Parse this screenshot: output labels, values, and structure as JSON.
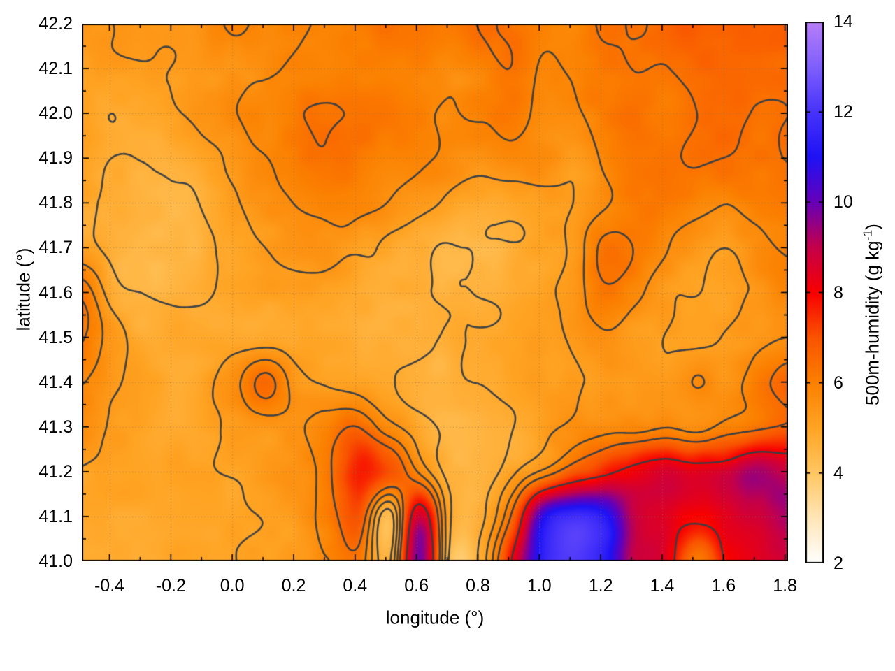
{
  "axes": {
    "xlabel": "longitude (°)",
    "ylabel": "latitude (°)"
  },
  "colorbar": {
    "label_pre": "500m-humidity (g kg",
    "label_sup": "-1",
    "label_post": ")",
    "min": 2,
    "max": 14,
    "tick_values": [
      2,
      4,
      6,
      8,
      10,
      12,
      14
    ],
    "tick_labels": [
      "2",
      "4",
      "6",
      "8",
      "10",
      "12",
      "14"
    ]
  },
  "chart_data": {
    "type": "heatmap",
    "title": "",
    "xlabel": "longitude (°)",
    "ylabel": "latitude (°)",
    "colorbar_label": "500m-humidity (g kg^-1)",
    "xlim": [
      -0.49,
      1.81
    ],
    "ylim": [
      41.0,
      42.2
    ],
    "zlim": [
      2,
      14
    ],
    "xticks": [
      -0.4,
      -0.2,
      0.0,
      0.2,
      0.4,
      0.6,
      0.8,
      1.0,
      1.2,
      1.4,
      1.6,
      1.8
    ],
    "xtick_labels": [
      "-0.4",
      "-0.2",
      "0.0",
      "0.2",
      "0.4",
      "0.6",
      "0.8",
      "1.0",
      "1.2",
      "1.4",
      "1.6",
      "1.8"
    ],
    "yticks": [
      41.0,
      41.1,
      41.2,
      41.3,
      41.4,
      41.5,
      41.6,
      41.7,
      41.8,
      41.9,
      42.0,
      42.1,
      42.2
    ],
    "ytick_labels": [
      "41.0",
      "41.1",
      "41.2",
      "41.3",
      "41.4",
      "41.5",
      "41.6",
      "41.7",
      "41.8",
      "41.9",
      "42.0",
      "42.1",
      "42.2"
    ],
    "x_minor_step": 0.1,
    "y_minor_step": 0.05,
    "grid": true,
    "grid_color": "rgba(140,115,85,0.8)",
    "palette": [
      [
        2,
        "#ffffff"
      ],
      [
        3,
        "#ffe6b8"
      ],
      [
        4,
        "#ffc762"
      ],
      [
        5,
        "#ffa424"
      ],
      [
        6,
        "#fb8000"
      ],
      [
        7,
        "#f95400"
      ],
      [
        8,
        "#f80000"
      ],
      [
        9,
        "#c4004a"
      ],
      [
        10,
        "#6600b8"
      ],
      [
        11,
        "#1e12f5"
      ],
      [
        12,
        "#4733fa"
      ],
      [
        13,
        "#7f5ffb"
      ],
      [
        14,
        "#b77ef8"
      ]
    ],
    "contour_levels": [
      4.65,
      5.2,
      5.8,
      6.4,
      8.0
    ],
    "contour_color": "rgba(55,62,70,0.95)",
    "grid_lon": [
      -0.49,
      -0.39,
      -0.29,
      -0.19,
      -0.09,
      0.01,
      0.11,
      0.21,
      0.31,
      0.41,
      0.51,
      0.61,
      0.71,
      0.81,
      0.91,
      1.01,
      1.11,
      1.21,
      1.31,
      1.41,
      1.51,
      1.61,
      1.71,
      1.81
    ],
    "grid_lat": [
      42.2,
      42.1,
      42.0,
      41.9,
      41.8,
      41.7,
      41.6,
      41.5,
      41.4,
      41.3,
      41.2,
      41.1,
      41.0
    ],
    "values": [
      [
        5.3,
        5.4,
        5.5,
        5.5,
        5.6,
        5.8,
        5.7,
        5.8,
        6.0,
        6.2,
        6.3,
        6.2,
        6.0,
        6.3,
        6.2,
        5.9,
        6.0,
        6.4,
        6.3,
        6.6,
        6.7,
        6.6,
        6.8,
        7.0
      ],
      [
        5.1,
        5.2,
        5.3,
        5.4,
        5.5,
        5.6,
        5.6,
        5.9,
        6.1,
        6.1,
        6.0,
        6.1,
        5.8,
        6.0,
        6.3,
        5.7,
        5.9,
        6.2,
        6.4,
        6.4,
        6.7,
        6.8,
        6.7,
        6.6
      ],
      [
        4.9,
        4.8,
        5.0,
        5.2,
        5.5,
        5.8,
        6.0,
        6.2,
        6.3,
        6.3,
        6.2,
        5.9,
        5.6,
        5.8,
        6.0,
        5.6,
        5.8,
        6.1,
        6.2,
        6.0,
        6.4,
        6.6,
        6.4,
        6.6
      ],
      [
        5.0,
        4.7,
        4.6,
        4.7,
        5.0,
        5.4,
        5.8,
        6.1,
        6.3,
        6.2,
        6.0,
        5.8,
        5.6,
        5.4,
        5.6,
        5.5,
        5.3,
        5.8,
        6.1,
        6.3,
        6.5,
        6.3,
        6.2,
        6.4
      ],
      [
        4.9,
        4.6,
        4.5,
        4.5,
        4.8,
        5.2,
        5.5,
        5.8,
        6.0,
        5.9,
        5.6,
        5.3,
        5.0,
        4.8,
        4.8,
        5.0,
        5.2,
        5.6,
        6.0,
        6.2,
        6.0,
        5.8,
        6.0,
        6.2
      ],
      [
        5.0,
        4.6,
        4.4,
        4.4,
        4.6,
        4.9,
        5.2,
        5.4,
        5.5,
        5.2,
        4.9,
        4.7,
        4.5,
        4.5,
        4.6,
        4.8,
        5.3,
        6.4,
        6.2,
        5.8,
        5.4,
        5.2,
        5.6,
        5.9
      ],
      [
        6.3,
        4.9,
        4.6,
        4.5,
        4.6,
        4.8,
        5.0,
        5.1,
        5.0,
        4.9,
        4.8,
        4.7,
        4.6,
        4.6,
        4.7,
        4.9,
        5.4,
        6.2,
        5.9,
        5.3,
        5.1,
        5.0,
        5.3,
        5.6
      ],
      [
        6.3,
        5.4,
        4.8,
        4.7,
        4.8,
        4.9,
        5.0,
        5.0,
        4.9,
        4.8,
        4.8,
        4.7,
        4.7,
        4.8,
        4.9,
        5.0,
        5.2,
        5.5,
        5.3,
        5.1,
        5.0,
        5.2,
        5.4,
        5.7
      ],
      [
        5.8,
        5.2,
        4.9,
        4.8,
        5.0,
        5.6,
        6.5,
        5.3,
        5.0,
        4.9,
        4.8,
        4.7,
        4.7,
        4.8,
        5.0,
        5.1,
        5.2,
        5.3,
        5.2,
        5.4,
        5.8,
        5.6,
        6.2,
        6.8
      ],
      [
        5.5,
        5.1,
        4.9,
        4.9,
        5.0,
        5.2,
        5.3,
        5.5,
        6.0,
        6.5,
        5.6,
        5.0,
        4.6,
        4.5,
        4.7,
        5.2,
        5.4,
        5.5,
        5.6,
        5.8,
        5.7,
        6.0,
        6.4,
        6.7
      ],
      [
        5.2,
        5.0,
        4.9,
        4.9,
        5.0,
        5.1,
        5.2,
        5.4,
        6.2,
        7.8,
        7.2,
        5.8,
        4.6,
        4.4,
        5.0,
        5.8,
        6.8,
        7.6,
        8.3,
        8.6,
        8.2,
        8.5,
        9.3,
        9.0
      ],
      [
        5.1,
        5.0,
        4.9,
        4.8,
        4.9,
        5.0,
        5.2,
        5.4,
        6.0,
        7.0,
        4.3,
        8.8,
        4.8,
        4.6,
        6.5,
        10.8,
        11.8,
        11.2,
        8.8,
        8.3,
        8.0,
        8.3,
        8.8,
        9.5
      ],
      [
        5.0,
        4.9,
        4.8,
        4.8,
        4.9,
        5.0,
        5.1,
        5.2,
        5.6,
        6.2,
        4.6,
        10.0,
        4.4,
        4.8,
        8.0,
        11.5,
        12.2,
        11.5,
        9.0,
        8.5,
        6.2,
        8.0,
        8.5,
        8.6
      ]
    ]
  }
}
